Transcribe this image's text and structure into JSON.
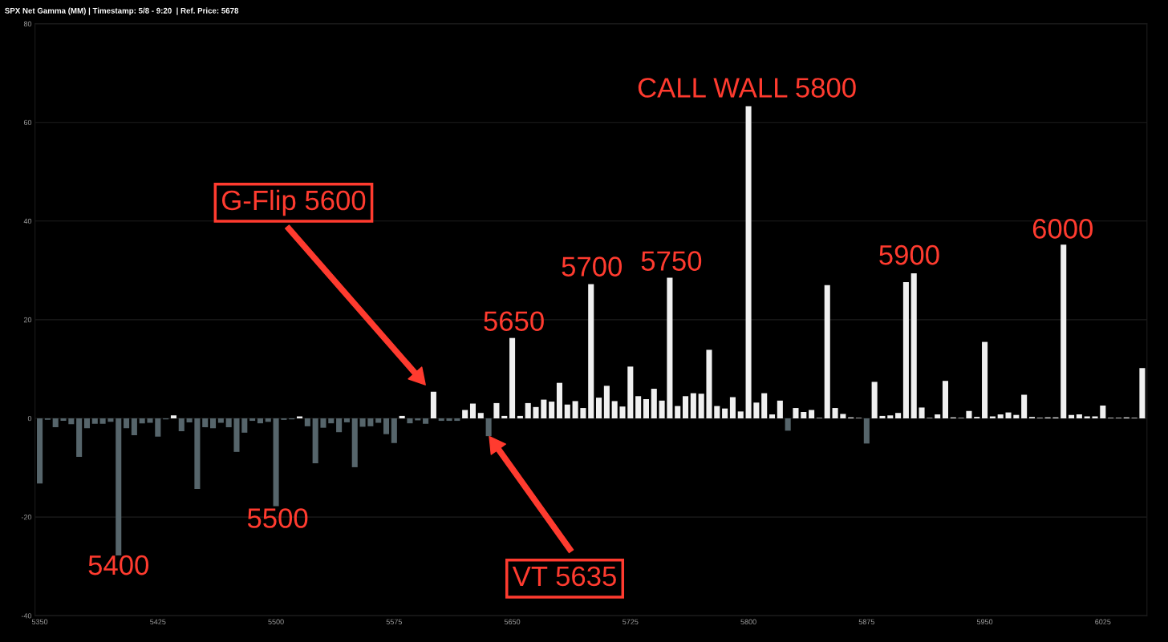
{
  "chart_data": {
    "type": "bar",
    "title": "SPX Net Gamma (MM) | Timestamp: 5/8 - 9:20  | Ref. Price: 5678",
    "x": [
      5350,
      5355,
      5360,
      5365,
      5370,
      5375,
      5380,
      5385,
      5390,
      5395,
      5400,
      5405,
      5410,
      5415,
      5420,
      5425,
      5430,
      5435,
      5440,
      5445,
      5450,
      5455,
      5460,
      5465,
      5470,
      5475,
      5480,
      5485,
      5490,
      5495,
      5500,
      5505,
      5510,
      5515,
      5520,
      5525,
      5530,
      5535,
      5540,
      5545,
      5550,
      5555,
      5560,
      5565,
      5570,
      5575,
      5580,
      5585,
      5590,
      5595,
      5600,
      5605,
      5610,
      5615,
      5620,
      5625,
      5630,
      5635,
      5640,
      5645,
      5650,
      5655,
      5660,
      5665,
      5670,
      5675,
      5680,
      5685,
      5690,
      5695,
      5700,
      5705,
      5710,
      5715,
      5720,
      5725,
      5730,
      5735,
      5740,
      5745,
      5750,
      5755,
      5760,
      5765,
      5770,
      5775,
      5780,
      5785,
      5790,
      5795,
      5800,
      5805,
      5810,
      5815,
      5820,
      5825,
      5830,
      5835,
      5840,
      5845,
      5850,
      5855,
      5860,
      5865,
      5870,
      5875,
      5880,
      5885,
      5890,
      5895,
      5900,
      5905,
      5910,
      5915,
      5920,
      5925,
      5930,
      5935,
      5940,
      5945,
      5950,
      5955,
      5960,
      5965,
      5970,
      5975,
      5980,
      5985,
      5990,
      5995,
      6000,
      6005,
      6010,
      6015,
      6020,
      6025,
      6030,
      6035,
      6040,
      6045,
      6050
    ],
    "values": [
      -13.2,
      -0.3,
      -1.8,
      -0.5,
      -1.2,
      -7.8,
      -2.0,
      -1.1,
      -1.1,
      -0.7,
      -27.8,
      -2.0,
      -3.4,
      -1.0,
      -0.9,
      -3.7,
      -0.2,
      0.6,
      -2.6,
      -0.8,
      -14.3,
      -1.8,
      -2.0,
      -0.9,
      -1.8,
      -6.8,
      -2.9,
      -0.5,
      -1.0,
      -0.7,
      -17.8,
      -0.3,
      -0.2,
      0.4,
      -1.6,
      -9.1,
      -1.9,
      -1.0,
      -2.8,
      -0.8,
      -9.9,
      -1.7,
      -1.6,
      -0.9,
      -3.2,
      -5.0,
      0.5,
      -1.0,
      -0.4,
      -1.1,
      5.4,
      -0.5,
      -0.5,
      -0.5,
      1.7,
      3.0,
      1.1,
      -3.6,
      3.1,
      0.5,
      16.3,
      0.5,
      3.1,
      2.3,
      3.8,
      3.4,
      7.2,
      2.8,
      3.5,
      2.1,
      27.2,
      4.2,
      6.6,
      3.5,
      2.4,
      10.5,
      4.5,
      3.9,
      6.0,
      3.6,
      28.5,
      2.5,
      4.5,
      5.1,
      5.0,
      13.9,
      2.5,
      2.0,
      4.3,
      1.4,
      63.3,
      3.2,
      5.1,
      0.8,
      3.6,
      -2.5,
      2.1,
      1.3,
      1.7,
      0.1,
      27.0,
      2.1,
      0.9,
      0.2,
      0.1,
      -5.1,
      7.4,
      0.5,
      0.6,
      1.1,
      27.6,
      29.4,
      2.2,
      0.1,
      0.8,
      7.6,
      0.2,
      0.1,
      1.5,
      0.3,
      15.5,
      0.4,
      0.8,
      1.2,
      0.7,
      4.8,
      0.3,
      0.1,
      0.2,
      0.2,
      35.2,
      0.7,
      0.8,
      0.4,
      0.4,
      2.6,
      0.1,
      0.1,
      0.2,
      0.1,
      10.2
    ],
    "colors": [
      "#56656b",
      "#56656b",
      "#56656b",
      "#56656b",
      "#56656b",
      "#56656b",
      "#56656b",
      "#56656b",
      "#56656b",
      "#56656b",
      "#56656b",
      "#56656b",
      "#56656b",
      "#56656b",
      "#56656b",
      "#56656b",
      "#56656b",
      "#f0f0f0",
      "#56656b",
      "#56656b",
      "#56656b",
      "#56656b",
      "#56656b",
      "#56656b",
      "#56656b",
      "#56656b",
      "#56656b",
      "#56656b",
      "#56656b",
      "#56656b",
      "#56656b",
      "#56656b",
      "#56656b",
      "#f0f0f0",
      "#56656b",
      "#56656b",
      "#56656b",
      "#56656b",
      "#56656b",
      "#56656b",
      "#56656b",
      "#56656b",
      "#56656b",
      "#56656b",
      "#56656b",
      "#56656b",
      "#f0f0f0",
      "#56656b",
      "#56656b",
      "#56656b",
      "#f0f0f0",
      "#56656b",
      "#56656b",
      "#56656b",
      "#f0f0f0",
      "#f0f0f0",
      "#f0f0f0",
      "#56656b",
      "#f0f0f0",
      "#f0f0f0",
      "#f0f0f0",
      "#f0f0f0",
      "#f0f0f0",
      "#f0f0f0",
      "#f0f0f0",
      "#f0f0f0",
      "#f0f0f0",
      "#f0f0f0",
      "#f0f0f0",
      "#f0f0f0",
      "#f0f0f0",
      "#f0f0f0",
      "#f0f0f0",
      "#f0f0f0",
      "#f0f0f0",
      "#f0f0f0",
      "#f0f0f0",
      "#f0f0f0",
      "#f0f0f0",
      "#f0f0f0",
      "#f0f0f0",
      "#f0f0f0",
      "#f0f0f0",
      "#f0f0f0",
      "#f0f0f0",
      "#f0f0f0",
      "#f0f0f0",
      "#f0f0f0",
      "#f0f0f0",
      "#f0f0f0",
      "#f0f0f0",
      "#f0f0f0",
      "#f0f0f0",
      "#f0f0f0",
      "#f0f0f0",
      "#56656b",
      "#f0f0f0",
      "#f0f0f0",
      "#f0f0f0",
      "#f0f0f0",
      "#f0f0f0",
      "#f0f0f0",
      "#f0f0f0",
      "#f0f0f0",
      "#f0f0f0",
      "#56656b",
      "#f0f0f0",
      "#f0f0f0",
      "#f0f0f0",
      "#f0f0f0",
      "#f0f0f0",
      "#f0f0f0",
      "#f0f0f0",
      "#f0f0f0",
      "#f0f0f0",
      "#f0f0f0",
      "#f0f0f0",
      "#f0f0f0",
      "#f0f0f0",
      "#f0f0f0",
      "#f0f0f0",
      "#f0f0f0",
      "#f0f0f0",
      "#f0f0f0",
      "#f0f0f0",
      "#f0f0f0",
      "#f0f0f0",
      "#f0f0f0",
      "#f0f0f0",
      "#f0f0f0",
      "#f0f0f0",
      "#f0f0f0",
      "#f0f0f0",
      "#f0f0f0",
      "#f0f0f0",
      "#f0f0f0",
      "#f0f0f0",
      "#f0f0f0",
      "#f0f0f0",
      "#f0f0f0",
      "#f0f0f0"
    ],
    "xlim": [
      5347,
      6053
    ],
    "xticks": [
      5350,
      5425,
      5500,
      5575,
      5650,
      5725,
      5800,
      5875,
      5950,
      6025
    ],
    "ylim": [
      -40,
      80
    ],
    "yticks": [
      -40,
      -20,
      0,
      20,
      40,
      60,
      80
    ],
    "grid": "y",
    "legend": false,
    "annotations": [
      "G-Flip 5600",
      {
        "text": "5650",
        "x": 5650,
        "y": 16.3
      },
      {
        "text": "5700",
        "x": 5700,
        "y": 27.2
      },
      {
        "text": "5750",
        "x": 5750,
        "y": 28.5
      },
      {
        "text": "CALL WALL 5800",
        "x": 5800,
        "y": 63.3
      },
      {
        "text": "5900",
        "x": 5900,
        "y": 27.6
      },
      {
        "text": "6000",
        "x": 6000,
        "y": 35.2
      },
      {
        "text": "5400",
        "x": 5400,
        "y": -27.8
      },
      {
        "text": "5500",
        "x": 5500,
        "y": -17.8
      },
      "VT 5635"
    ]
  }
}
